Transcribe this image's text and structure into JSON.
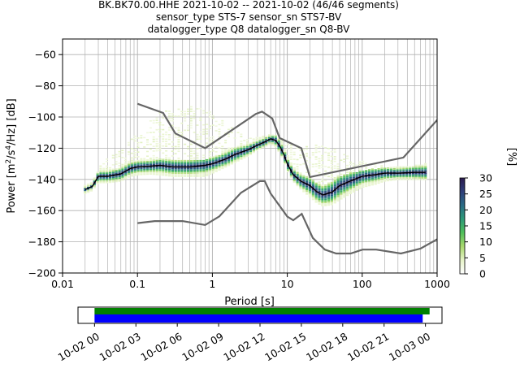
{
  "title_lines": [
    "BK.BK70.00.HHE   2021-10-02 -- 2021-10-02  (46/46 segments)",
    "sensor_type STS-7 sensor_sn STS7-BV",
    "datalogger_type Q8 datalogger_sn Q8-BV"
  ],
  "chart_data": {
    "type": "heatmap",
    "xlabel": "Period [s]",
    "ylabel_parts": [
      "Power [m",
      "2",
      "/s",
      "4",
      "/Hz] [dB]"
    ],
    "xscale": "log",
    "xlim": [
      0.01,
      1000
    ],
    "ylim": [
      -200,
      -50
    ],
    "xticks": [
      0.01,
      0.1,
      1,
      10,
      100,
      1000
    ],
    "xtick_labels": [
      "0.01",
      "0.1",
      "1",
      "10",
      "100",
      "1000"
    ],
    "yticks": [
      -200,
      -180,
      -160,
      -140,
      -120,
      -100,
      -80,
      -60
    ],
    "ytick_labels": [
      "−200",
      "−180",
      "−160",
      "−140",
      "−120",
      "−100",
      "−80",
      "−60"
    ],
    "grid": true,
    "colorbar": {
      "label": "[%]",
      "range": [
        0,
        30
      ],
      "ticks": [
        0,
        5,
        10,
        15,
        20,
        25,
        30
      ],
      "tick_labels": [
        "0",
        "5",
        "10",
        "15",
        "20",
        "25",
        "30"
      ],
      "colormap": [
        "#ffffff",
        "#e6f3c8",
        "#a9d86e",
        "#4fbf5a",
        "#2d9a78",
        "#2a6b85",
        "#2e3f7a",
        "#2b1a4f"
      ]
    },
    "noise_models": [
      {
        "name": "NHNM",
        "color": "#666666",
        "x": [
          0.1,
          0.22,
          0.32,
          0.8,
          3.8,
          4.6,
          6.3,
          7.9,
          15.4,
          20,
          354.8,
          10000
        ],
        "y": [
          -91.5,
          -97.4,
          -110.5,
          -120,
          -98,
          -96.5,
          -101,
          -113.5,
          -120,
          -138.5,
          -126,
          -48.5
        ]
      },
      {
        "name": "NLNM",
        "color": "#666666",
        "x": [
          0.1,
          0.17,
          0.4,
          0.8,
          1.24,
          2.4,
          4.3,
          5,
          6,
          10,
          12,
          15.6,
          21.9,
          31.6,
          45,
          70,
          101,
          154,
          328,
          600,
          10000
        ],
        "y": [
          -168,
          -166.7,
          -166.7,
          -169.2,
          -163.7,
          -148.6,
          -141.1,
          -141.1,
          -149,
          -163.8,
          -166.2,
          -162.1,
          -177.5,
          -185,
          -187.5,
          -187.5,
          -185,
          -185,
          -187.5,
          -184.4,
          -151.5
        ]
      }
    ],
    "psd_percentiles": {
      "x": [
        0.02,
        0.025,
        0.03,
        0.04,
        0.06,
        0.08,
        0.1,
        0.15,
        0.2,
        0.3,
        0.5,
        0.8,
        1.0,
        1.5,
        2,
        3,
        4,
        5,
        6,
        7,
        8,
        9,
        10,
        12,
        15,
        20,
        25,
        30,
        40,
        50,
        70,
        100,
        150,
        200,
        300,
        500,
        700
      ],
      "p5": [
        -148,
        -146,
        -141,
        -141,
        -140,
        -137,
        -136,
        -135.5,
        -136,
        -137,
        -137,
        -137,
        -135,
        -131,
        -128,
        -124,
        -120,
        -118,
        -116,
        -118,
        -122,
        -127,
        -133,
        -140,
        -145,
        -150,
        -154,
        -156,
        -155,
        -152,
        -148,
        -144,
        -142,
        -140,
        -139,
        -139,
        -139
      ],
      "mean": [
        -146.5,
        -144.5,
        -138,
        -138,
        -136.5,
        -133,
        -132,
        -131.5,
        -131,
        -132,
        -132,
        -131,
        -130,
        -127,
        -124,
        -121,
        -118,
        -116,
        -114,
        -115,
        -119,
        -124,
        -130,
        -137,
        -141,
        -144,
        -148,
        -150,
        -148,
        -144,
        -141,
        -138,
        -137,
        -136,
        -136,
        -135.5,
        -135.5
      ],
      "p95": [
        -145,
        -143,
        -135,
        -135,
        -133,
        -130,
        -129,
        -128.5,
        -128,
        -128.5,
        -128.5,
        -128,
        -127,
        -123,
        -120,
        -118,
        -115,
        -113,
        -112,
        -112,
        -115,
        -120,
        -126,
        -133,
        -137,
        -140,
        -143,
        -145,
        -142,
        -139,
        -137,
        -135,
        -134,
        -133,
        -133,
        -132,
        -131
      ],
      "faint_upper": [
        null,
        null,
        -130,
        -125,
        -120,
        -115,
        -110,
        -102,
        -97,
        -94,
        -93,
        -94,
        -96,
        -104,
        -108,
        -112,
        -113,
        -113,
        -112,
        -112,
        -113,
        -114,
        -115,
        -117,
        -119,
        -118,
        -117,
        -117,
        -120,
        -122,
        -125,
        -128,
        -130,
        -131,
        -131,
        -131,
        -131
      ]
    }
  },
  "timeline": {
    "tick_labels": [
      "10-02 00",
      "10-02 03",
      "10-02 06",
      "10-02 09",
      "10-02 12",
      "10-02 15",
      "10-02 18",
      "10-02 21",
      "10-03 00"
    ],
    "hours_range": [
      -1.2,
      25.2
    ],
    "green_bar_hours": [
      0,
      24.3
    ],
    "blue_bar_hours": [
      0,
      23.8
    ],
    "green_color": "#008000",
    "blue_color": "#0000ff"
  }
}
